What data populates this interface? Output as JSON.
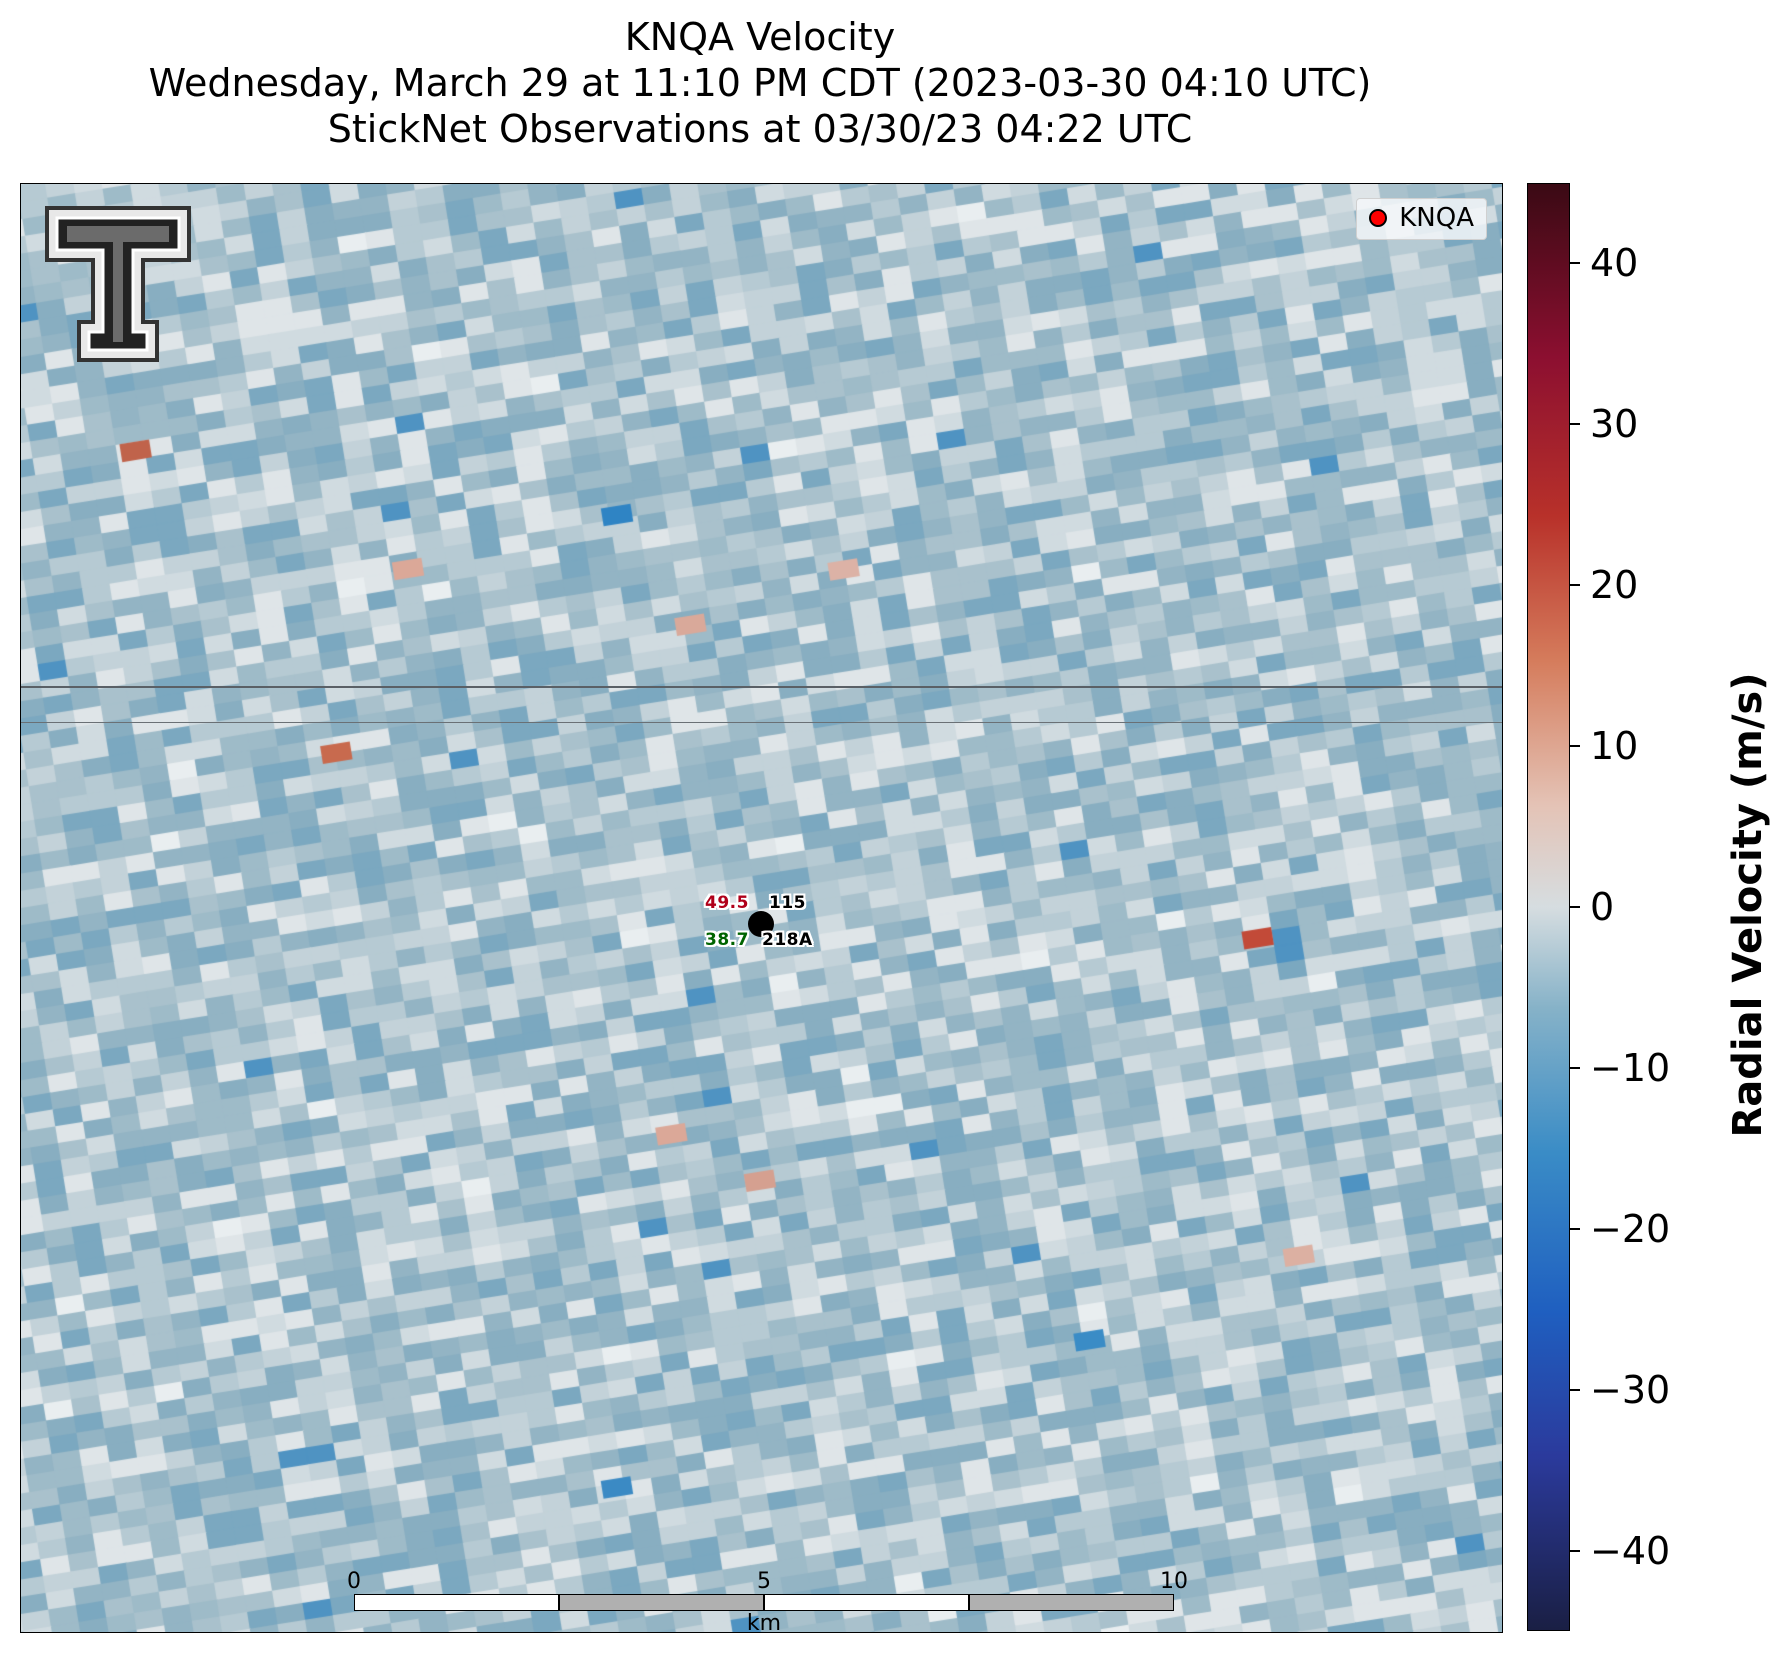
{
  "title": {
    "line1": "KNQA Velocity",
    "line2": "Wednesday, March 29 at 11:10 PM CDT (2023-03-30 04:10 UTC)",
    "line3": "StickNet Observations at 03/30/23 04:22 UTC"
  },
  "legend": {
    "label": "KNQA",
    "marker_color": "#ff0000"
  },
  "observation": {
    "temperature": "49.5",
    "dewpoint": "38.7",
    "station_id_1": "115",
    "station_id_2": "218A",
    "temperature_color": "#b0001a",
    "dewpoint_color": "#006400"
  },
  "scalebar": {
    "labels": [
      "0",
      "5",
      "10"
    ],
    "unit": "km"
  },
  "colorbar": {
    "title": "Radial Velocity (m/s)",
    "range": [
      -45,
      45
    ],
    "ticks": [
      "40",
      "30",
      "20",
      "10",
      "0",
      "−10",
      "−20",
      "−30",
      "−40"
    ],
    "tick_values": [
      40,
      30,
      20,
      10,
      0,
      -10,
      -20,
      -30,
      -40
    ]
  },
  "logo": {
    "name": "texas-tech-double-t-logo"
  },
  "colors": {
    "background_velocity": "#a9c1cc",
    "inbound": "#3a8cc6",
    "outbound": "#d57c5c",
    "near_zero": "#d6dde0"
  }
}
